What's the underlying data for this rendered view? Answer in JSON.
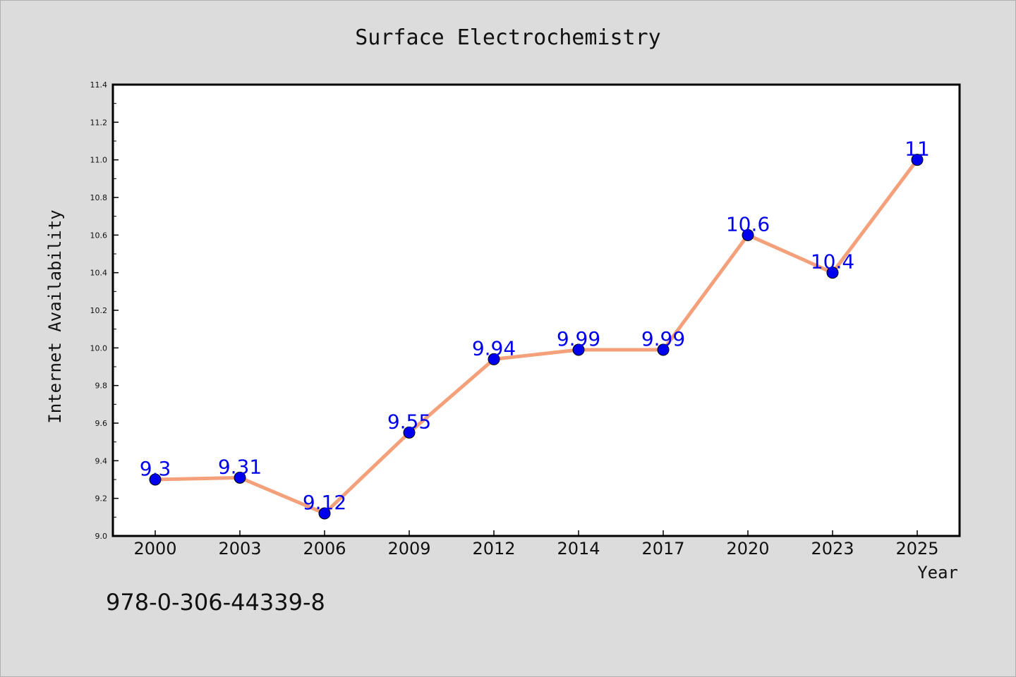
{
  "chart_data": {
    "type": "line",
    "title": "Surface Electrochemistry",
    "xlabel": "Year",
    "ylabel": "Internet Availability",
    "categories": [
      "2000",
      "2003",
      "2006",
      "2009",
      "2012",
      "2014",
      "2017",
      "2020",
      "2023",
      "2025"
    ],
    "series": [
      {
        "values": [
          9.3,
          9.31,
          9.12,
          9.55,
          9.94,
          9.99,
          9.99,
          10.6,
          10.4,
          11
        ],
        "labels": [
          "9.3",
          "9.31",
          "9.12",
          "9.55",
          "9.94",
          "9.99",
          "9.99",
          "10.6",
          "10.4",
          "11"
        ],
        "line_color": "#f4a07a",
        "marker_color": "#0000ee"
      }
    ],
    "ylim": [
      9.0,
      11.4
    ],
    "yticks": [
      "9.0",
      "9.2",
      "9.4",
      "9.6",
      "9.8",
      "10.0",
      "10.2",
      "10.4",
      "10.6",
      "10.8",
      "11.0",
      "11.2",
      "11.4"
    ],
    "grid": false,
    "legend": "none"
  },
  "annotation": "978-0-306-44339-8",
  "colors": {
    "background": "#dcdcdc",
    "plot_background": "#ffffff",
    "label_color": "#0000ee"
  }
}
